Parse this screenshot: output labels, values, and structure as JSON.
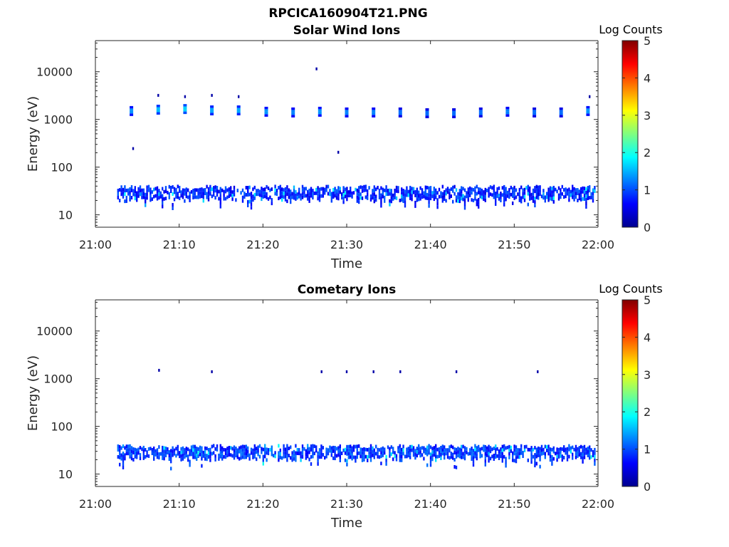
{
  "figure": {
    "title": "RPCICA160904T21.PNG"
  },
  "chart_data": [
    {
      "type": "heatmap",
      "title": "Solar Wind Ions",
      "xlabel": "Time",
      "ylabel": "Energy (eV)",
      "x_ticks": [
        "21:00",
        "21:10",
        "21:20",
        "21:30",
        "21:40",
        "21:50",
        "22:00"
      ],
      "x_range_minutes": [
        0,
        60
      ],
      "y_scale": "log",
      "y_ticks": [
        10,
        100,
        1000,
        10000
      ],
      "y_tick_labels": [
        "10",
        "100",
        "1000",
        "10000"
      ],
      "y_range": [
        5.5,
        45000
      ],
      "colorbar": {
        "title": "Log Counts",
        "range": [
          0,
          5
        ],
        "ticks": [
          "0",
          "1",
          "2",
          "3",
          "4",
          "5"
        ],
        "colormap": "jet"
      },
      "bands": [
        {
          "t_start": 2.6,
          "t_end": 59.6,
          "e_low": 20,
          "e_high": 40,
          "level": 0.5
        }
      ],
      "beams": [
        {
          "t": 4.3,
          "e": 1500,
          "level": 1.0
        },
        {
          "t": 7.5,
          "e": 1600,
          "level": 1.2
        },
        {
          "t": 10.7,
          "e": 1650,
          "level": 1.3
        },
        {
          "t": 13.9,
          "e": 1550,
          "level": 1.1
        },
        {
          "t": 17.1,
          "e": 1550,
          "level": 1.1
        },
        {
          "t": 20.4,
          "e": 1450,
          "level": 1.0
        },
        {
          "t": 23.6,
          "e": 1400,
          "level": 0.9
        },
        {
          "t": 26.8,
          "e": 1450,
          "level": 1.0
        },
        {
          "t": 30.0,
          "e": 1400,
          "level": 0.9
        },
        {
          "t": 33.2,
          "e": 1400,
          "level": 0.9
        },
        {
          "t": 36.4,
          "e": 1400,
          "level": 0.8
        },
        {
          "t": 39.6,
          "e": 1350,
          "level": 0.8
        },
        {
          "t": 42.8,
          "e": 1350,
          "level": 0.8
        },
        {
          "t": 46.0,
          "e": 1400,
          "level": 0.8
        },
        {
          "t": 49.2,
          "e": 1450,
          "level": 0.9
        },
        {
          "t": 52.4,
          "e": 1400,
          "level": 0.8
        },
        {
          "t": 55.6,
          "e": 1400,
          "level": 0.8
        },
        {
          "t": 58.8,
          "e": 1500,
          "level": 1.0
        }
      ],
      "points": [
        {
          "t": 7.5,
          "e": 3200,
          "level": 0.2
        },
        {
          "t": 10.7,
          "e": 3000,
          "level": 0.2
        },
        {
          "t": 13.9,
          "e": 3200,
          "level": 0.2
        },
        {
          "t": 17.1,
          "e": 3000,
          "level": 0.2
        },
        {
          "t": 26.4,
          "e": 11500,
          "level": 0.2
        },
        {
          "t": 4.5,
          "e": 245,
          "level": 0.2
        },
        {
          "t": 29.0,
          "e": 205,
          "level": 0.2
        },
        {
          "t": 59.0,
          "e": 3000,
          "level": 0.2
        }
      ]
    },
    {
      "type": "heatmap",
      "title": "Cometary Ions",
      "xlabel": "Time",
      "ylabel": "Energy (eV)",
      "x_ticks": [
        "21:00",
        "21:10",
        "21:20",
        "21:30",
        "21:40",
        "21:50",
        "22:00"
      ],
      "x_range_minutes": [
        0,
        60
      ],
      "y_scale": "log",
      "y_ticks": [
        10,
        100,
        1000,
        10000
      ],
      "y_tick_labels": [
        "10",
        "100",
        "1000",
        "10000"
      ],
      "y_range": [
        5.5,
        45000
      ],
      "colorbar": {
        "title": "Log Counts",
        "range": [
          0,
          5
        ],
        "ticks": [
          "0",
          "1",
          "2",
          "3",
          "4",
          "5"
        ],
        "colormap": "jet"
      },
      "bands": [
        {
          "t_start": 2.6,
          "t_end": 59.6,
          "e_low": 20,
          "e_high": 40,
          "level": 0.6
        }
      ],
      "beams": [],
      "points": [
        {
          "t": 7.6,
          "e": 1500,
          "level": 0.2
        },
        {
          "t": 13.9,
          "e": 1400,
          "level": 0.2
        },
        {
          "t": 27.0,
          "e": 1400,
          "level": 0.2
        },
        {
          "t": 30.0,
          "e": 1400,
          "level": 0.2
        },
        {
          "t": 33.2,
          "e": 1400,
          "level": 0.2
        },
        {
          "t": 36.4,
          "e": 1400,
          "level": 0.2
        },
        {
          "t": 43.1,
          "e": 1400,
          "level": 0.2
        },
        {
          "t": 52.8,
          "e": 1400,
          "level": 0.2
        }
      ]
    }
  ]
}
